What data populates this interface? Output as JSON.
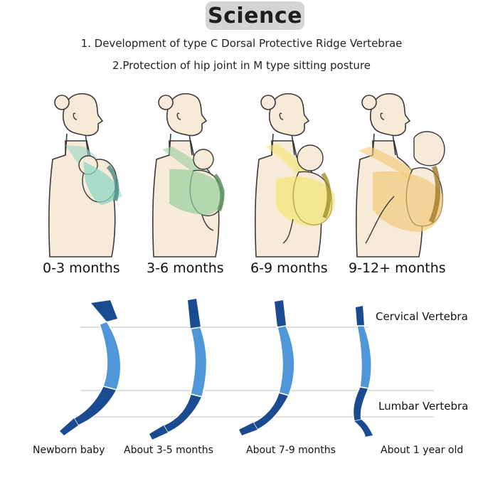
{
  "header": {
    "title": "Science",
    "line1": "1. Development of type C Dorsal Protective Ridge Vertebrae",
    "line2": "2.Protection of hip joint in M type sitting posture"
  },
  "stages": [
    {
      "label": "0-3 months",
      "carrier_color": "#8fd6c4"
    },
    {
      "label": "3-6 months",
      "carrier_color": "#97cf9c"
    },
    {
      "label": "6-9 months",
      "carrier_color": "#f3e56a"
    },
    {
      "label": "9-12+ months",
      "carrier_color": "#f2c871"
    }
  ],
  "spine_diagram": {
    "captions": [
      "Newborn baby",
      "About 3-5 months",
      "About 7-9 months",
      "About 1 year old"
    ],
    "labels": {
      "cervical": "Cervical Vertebra",
      "lumbar": "Lumbar Vertebra"
    },
    "colors": {
      "dark": "#1a4a8f",
      "light": "#4f97d8",
      "reference_line": "#bcbcbc"
    }
  },
  "colors": {
    "skin": "#f7ead9",
    "outline": "#3a3a3a",
    "badge": "#d4d4d4"
  }
}
